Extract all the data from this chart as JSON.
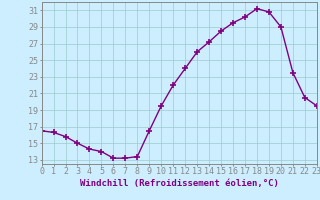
{
  "x": [
    0,
    1,
    2,
    3,
    4,
    5,
    6,
    7,
    8,
    9,
    10,
    11,
    12,
    13,
    14,
    15,
    16,
    17,
    18,
    19,
    20,
    21,
    22,
    23
  ],
  "y": [
    16.5,
    16.3,
    15.8,
    15.0,
    14.3,
    14.0,
    13.2,
    13.2,
    13.4,
    16.5,
    19.5,
    22.0,
    24.0,
    26.0,
    27.2,
    28.5,
    29.5,
    30.2,
    31.2,
    30.8,
    29.0,
    23.5,
    20.5,
    19.5
  ],
  "xlim": [
    0,
    23
  ],
  "ylim": [
    12.5,
    32.0
  ],
  "yticks": [
    13,
    15,
    17,
    19,
    21,
    23,
    25,
    27,
    29,
    31
  ],
  "xticks": [
    0,
    1,
    2,
    3,
    4,
    5,
    6,
    7,
    8,
    9,
    10,
    11,
    12,
    13,
    14,
    15,
    16,
    17,
    18,
    19,
    20,
    21,
    22,
    23
  ],
  "xlabel": "Windchill (Refroidissement éolien,°C)",
  "line_color": "#800080",
  "marker": "+",
  "marker_size": 5,
  "marker_lw": 1.2,
  "line_width": 1.0,
  "bg_color": "#cceeff",
  "grid_color": "#99cccc",
  "axis_color": "#888888",
  "label_color": "#800080",
  "xlabel_fontsize": 6.5,
  "tick_fontsize": 6.0
}
